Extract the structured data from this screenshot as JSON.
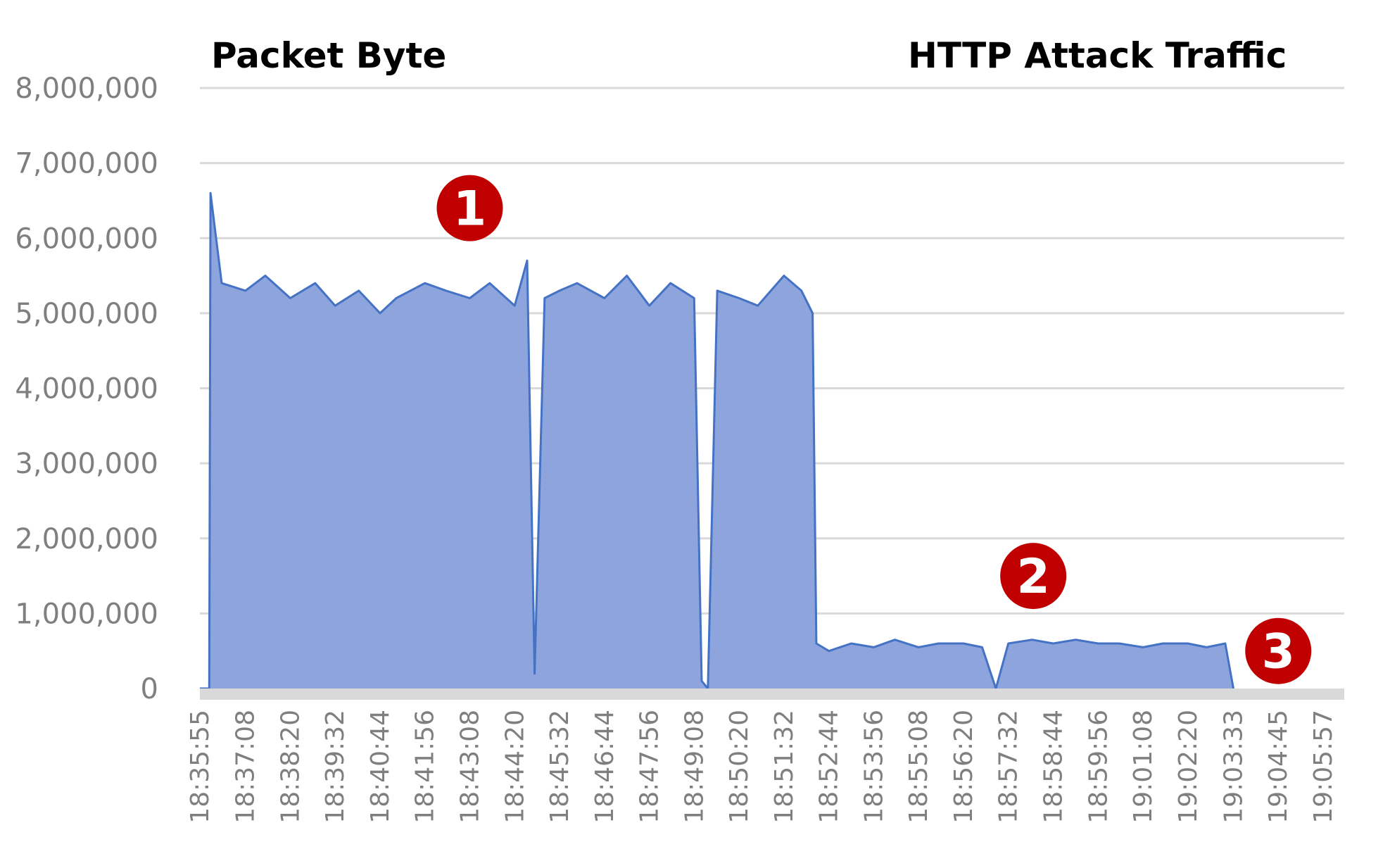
{
  "chart_data": {
    "type": "area",
    "title_left": "Packet Byte",
    "title_right": "HTTP Attack Traffic",
    "xlabel": "",
    "ylabel": "",
    "ylim": [
      0,
      8000000
    ],
    "y_ticks": [
      0,
      1000000,
      2000000,
      3000000,
      4000000,
      5000000,
      6000000,
      7000000,
      8000000
    ],
    "y_tick_labels": [
      "0",
      "1,000,000",
      "2,000,000",
      "3,000,000",
      "4,000,000",
      "5,000,000",
      "6,000,000",
      "7,000,000",
      "8,000,000"
    ],
    "x_tick_labels": [
      "18:35:55",
      "18:37:08",
      "18:38:20",
      "18:39:32",
      "18:40:44",
      "18:41:56",
      "18:43:08",
      "18:44:20",
      "18:45:32",
      "18:46:44",
      "18:47:56",
      "18:49:08",
      "18:50:20",
      "18:51:32",
      "18:52:44",
      "18:53:56",
      "18:55:08",
      "18:56:20",
      "18:57:32",
      "18:58:44",
      "18:59:56",
      "19:01:08",
      "19:02:20",
      "19:03:33",
      "19:04:45",
      "19:05:57"
    ],
    "grid": true,
    "legend": "none",
    "fill_color": "#8ea4dc",
    "line_color": "#4472c4",
    "series": [
      {
        "x": [
          "18:35:55",
          "18:36:10",
          "18:36:12",
          "18:36:30",
          "18:37:08",
          "18:37:40",
          "18:38:20",
          "18:39:00",
          "18:39:32",
          "18:40:10",
          "18:40:44",
          "18:41:10",
          "18:41:56",
          "18:42:30",
          "18:43:08",
          "18:43:40",
          "18:44:20",
          "18:44:40",
          "18:44:52",
          "18:45:08",
          "18:45:32",
          "18:46:00",
          "18:46:44",
          "18:47:20",
          "18:47:56",
          "18:48:30",
          "18:49:08",
          "18:49:20",
          "18:49:30",
          "18:49:45",
          "18:50:20",
          "18:50:50",
          "18:51:32",
          "18:52:00",
          "18:52:18",
          "18:52:24",
          "18:52:44",
          "18:53:20",
          "18:53:56",
          "18:54:30",
          "18:55:08",
          "18:55:40",
          "18:56:20",
          "18:56:50",
          "18:57:12",
          "18:57:32",
          "18:58:10",
          "18:58:44",
          "18:59:20",
          "18:59:56",
          "19:00:30",
          "19:01:08",
          "19:01:40",
          "19:02:20",
          "19:02:50",
          "19:03:20",
          "19:03:33"
        ],
        "values": [
          0,
          0,
          6600000,
          5400000,
          5300000,
          5500000,
          5200000,
          5400000,
          5100000,
          5300000,
          5000000,
          5200000,
          5400000,
          5300000,
          5200000,
          5400000,
          5100000,
          5700000,
          200000,
          5200000,
          5300000,
          5400000,
          5200000,
          5500000,
          5100000,
          5400000,
          5200000,
          100000,
          0,
          5300000,
          5200000,
          5100000,
          5500000,
          5300000,
          5000000,
          600000,
          500000,
          600000,
          550000,
          650000,
          550000,
          600000,
          600000,
          550000,
          0,
          600000,
          650000,
          600000,
          650000,
          600000,
          600000,
          550000,
          600000,
          600000,
          550000,
          600000,
          0
        ]
      }
    ],
    "annotations": [
      {
        "label": "1",
        "x": "18:43:08",
        "y": 6400000
      },
      {
        "label": "2",
        "x": "18:58:12",
        "y": 1500000
      },
      {
        "label": "3",
        "x": "19:04:45",
        "y": 500000
      }
    ]
  }
}
